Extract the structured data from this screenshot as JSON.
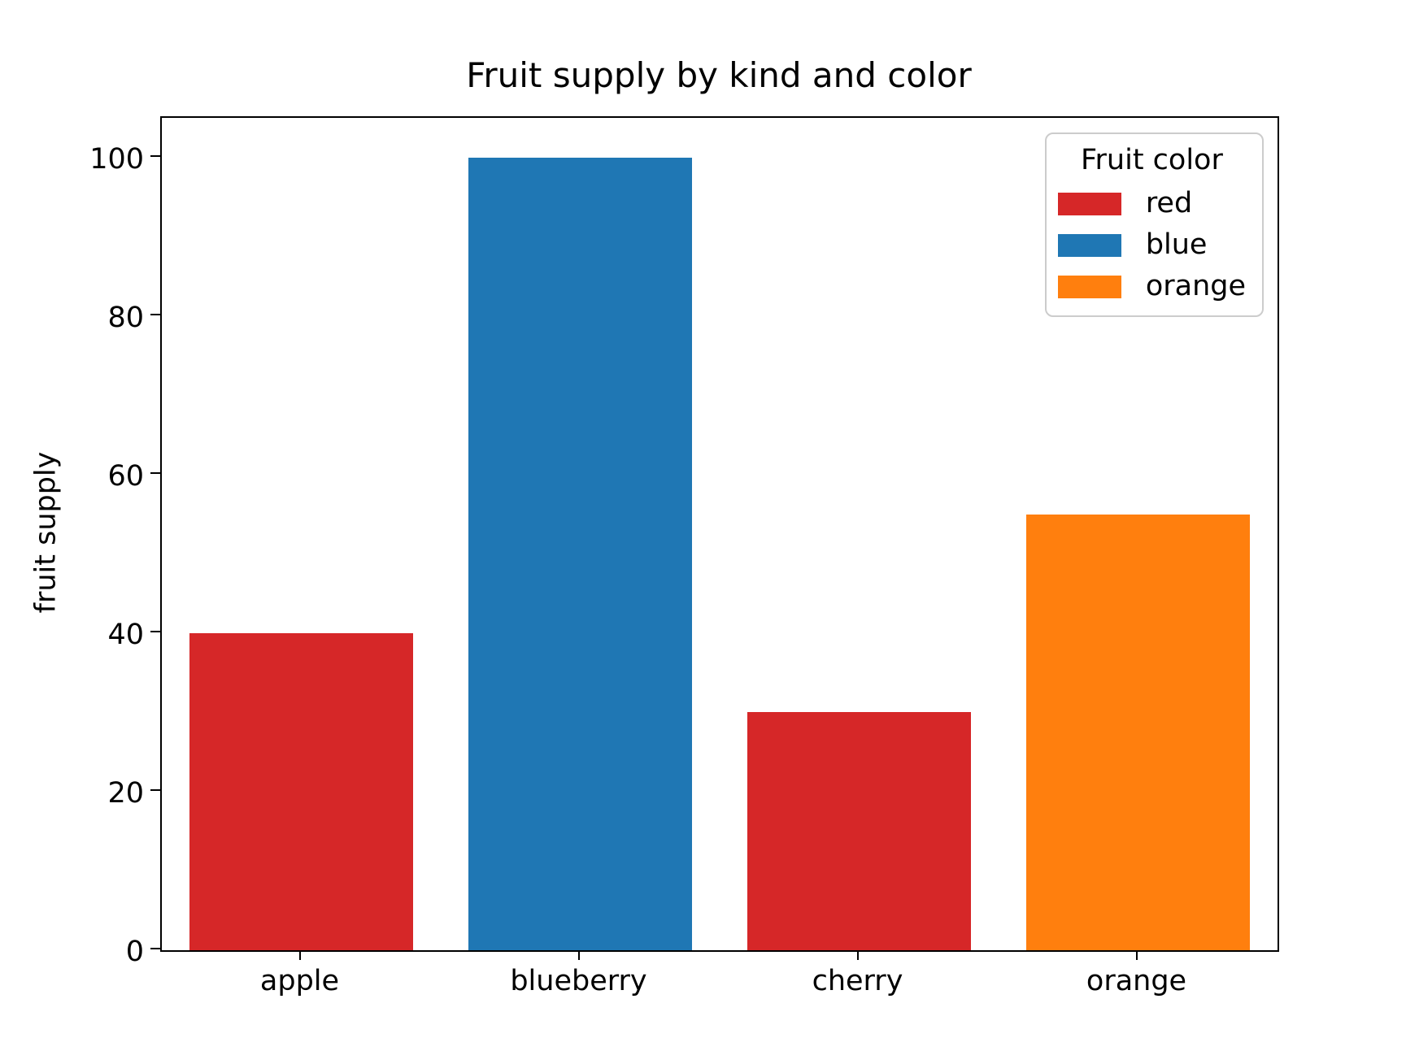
{
  "chart_data": {
    "type": "bar",
    "title": "Fruit supply by kind and color",
    "xlabel": "",
    "ylabel": "fruit supply",
    "categories": [
      "apple",
      "blueberry",
      "cherry",
      "orange"
    ],
    "values": [
      40,
      100,
      30,
      55
    ],
    "bar_colors": [
      "#d62728",
      "#1f77b4",
      "#d62728",
      "#ff7f0e"
    ],
    "bar_color_names": [
      "red",
      "blue",
      "red",
      "orange"
    ],
    "ylim": [
      0,
      105
    ],
    "yticks": [
      0,
      20,
      40,
      60,
      80,
      100
    ],
    "bar_width_fraction": 0.8,
    "grid": false,
    "background_color": "#ffffff",
    "axis_color": "#000000",
    "legend": {
      "title": "Fruit color",
      "position": "upper right",
      "entries": [
        {
          "label": "red",
          "color": "#d62728"
        },
        {
          "label": "blue",
          "color": "#1f77b4"
        },
        {
          "label": "orange",
          "color": "#ff7f0e"
        }
      ]
    }
  }
}
